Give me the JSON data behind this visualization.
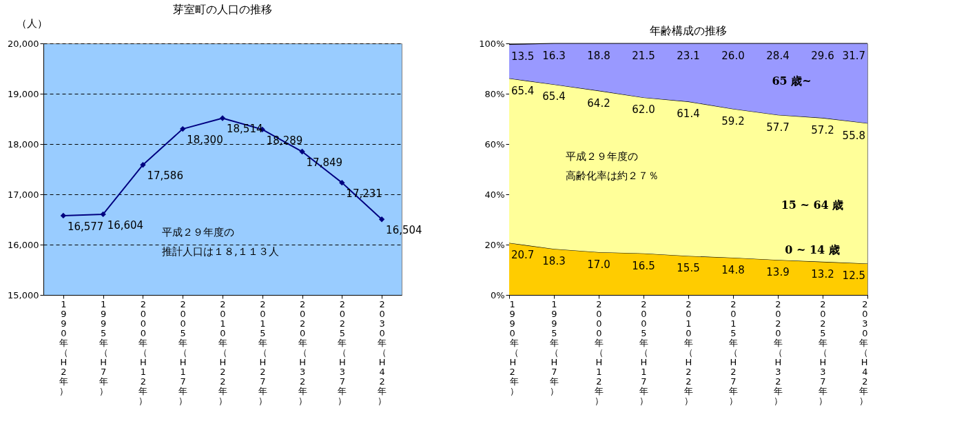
{
  "chart_data": [
    {
      "type": "line",
      "title": "芽室町の人口の推移",
      "ylabel": "（人）",
      "categories": [
        "1990年（H2年）",
        "1995年（H7年）",
        "2000年（H12年）",
        "2005年（H17年）",
        "2010年（H22年）",
        "2015年（H27年）",
        "2020年（H32年）",
        "2025年（H37年）",
        "2030年（H42年）"
      ],
      "series": [
        {
          "color": "#000080",
          "values": [
            16577,
            16604,
            17586,
            18300,
            18514,
            18289,
            17849,
            17231,
            16504
          ]
        }
      ],
      "ylim": [
        15000,
        20000
      ],
      "yticks": [
        {
          "value": 15000,
          "label": "15,000"
        },
        {
          "value": 16000,
          "label": "16,000"
        },
        {
          "value": 17000,
          "label": "17,000"
        },
        {
          "value": 18000,
          "label": "18,000"
        },
        {
          "value": 19000,
          "label": "19,000"
        },
        {
          "value": 20000,
          "label": "20,000"
        }
      ],
      "grid": "y",
      "marker": "diamond",
      "line_style": "solid",
      "value_labels": [
        "16,577",
        "16,604",
        "17,586",
        "18,300",
        "18,514",
        "18,289",
        "17,849",
        "17,231",
        "16,504"
      ],
      "annotations": [
        "平成２９年度の",
        "推計人口は１８,１１３人"
      ]
    },
    {
      "type": "area",
      "title": "年齢構成の推移",
      "stacked": true,
      "categories": [
        "1990年（H2年）",
        "1995年（H7年）",
        "2000年（H12年）",
        "2005年（H17年）",
        "2010年（H22年）",
        "2015年（H27年）",
        "2020年（H32年）",
        "2025年（H37年）",
        "2030年（H42年）"
      ],
      "series": [
        {
          "name": "0 ~ 14 歳",
          "color": "#ffcc00",
          "values": [
            20.7,
            18.3,
            17.0,
            16.5,
            15.5,
            14.8,
            13.9,
            13.2,
            12.5
          ],
          "value_labels": [
            "20.7",
            "18.3",
            "17.0",
            "16.5",
            "15.5",
            "14.8",
            "13.9",
            "13.2",
            "12.5"
          ]
        },
        {
          "name": "15 ~ 64 歳",
          "color": "#ffff99",
          "values": [
            65.4,
            65.4,
            64.2,
            62.0,
            61.4,
            59.2,
            57.7,
            57.2,
            55.8
          ],
          "value_labels": [
            "65.4",
            "65.4",
            "64.2",
            "62.0",
            "61.4",
            "59.2",
            "57.7",
            "57.2",
            "55.8"
          ]
        },
        {
          "name": "65 歳~",
          "color": "#9999ff",
          "values": [
            13.5,
            16.3,
            18.8,
            21.5,
            23.1,
            26.0,
            28.4,
            29.6,
            31.7
          ],
          "value_labels": [
            "13.5",
            "16.3",
            "18.8",
            "21.5",
            "23.1",
            "26.0",
            "28.4",
            "29.6",
            "31.7"
          ]
        }
      ],
      "ylim": [
        0,
        100
      ],
      "yticks": [
        {
          "value": 0,
          "label": "0%"
        },
        {
          "value": 20,
          "label": "20%"
        },
        {
          "value": 40,
          "label": "40%"
        },
        {
          "value": 60,
          "label": "60%"
        },
        {
          "value": 80,
          "label": "80%"
        },
        {
          "value": 100,
          "label": "100%"
        }
      ],
      "grid": false,
      "annotations": [
        "平成２９年度の",
        "高齢化率は約２７％"
      ]
    }
  ]
}
